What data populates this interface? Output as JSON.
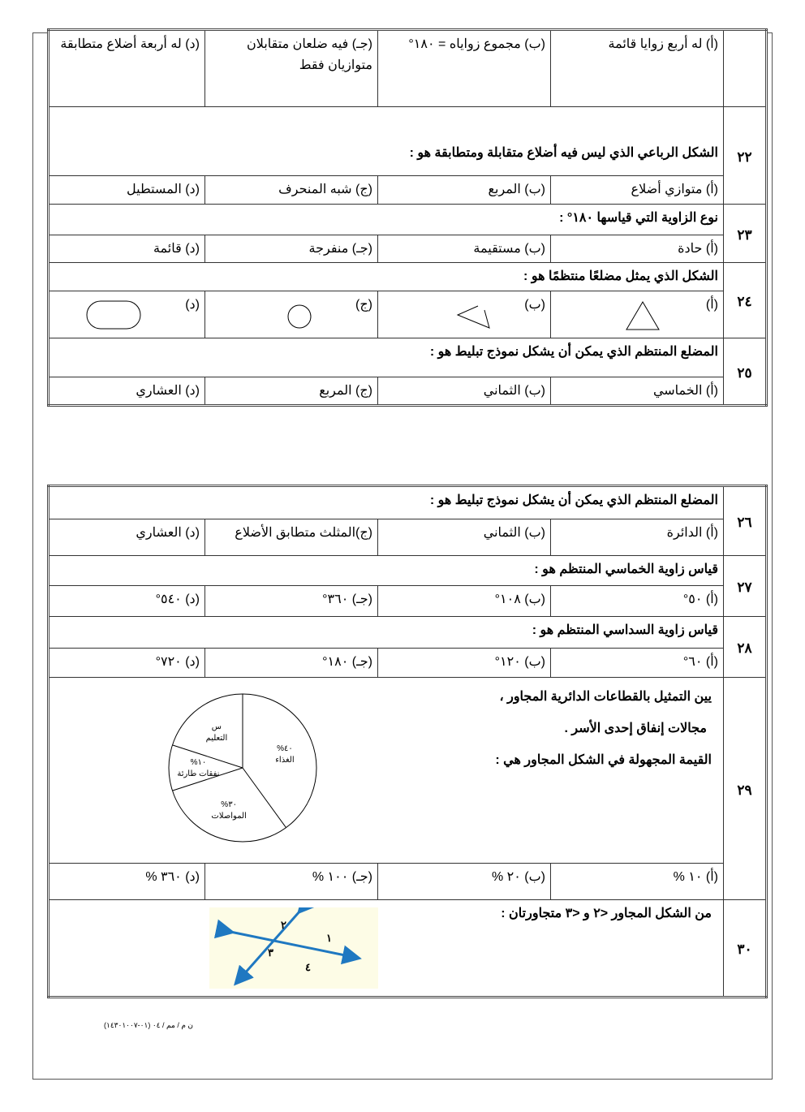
{
  "q21": {
    "options": [
      "(أ) له أربع زوايا قائمة",
      "(ب) مجموع زواياه = ١٨٠°",
      "(جـ) فيه ضلعان متقابلان متوازيان  فقط",
      "(د) له أربعة أضلاع متطابقة"
    ]
  },
  "q22": {
    "number": "٢٢",
    "question": "الشكل الرباعي الذي ليس فيه أضلاع متقابلة ومتطابقة هو :",
    "options": [
      "(أ) متوازي أضلاع",
      "(ب) المربع",
      "(ج) شبه المنحرف",
      "(د) المستطيل"
    ]
  },
  "q23": {
    "number": "٢٣",
    "question": "نوع الزاوية التي قياسها ١٨٠° :",
    "options": [
      "(أ) حادة",
      "(ب) مستقيمة",
      "(جـ) منفرجة",
      "(د) قائمة"
    ]
  },
  "q24": {
    "number": "٢٤",
    "question": "الشكل الذي يمثل مضلعًا منتظمًا هو :",
    "options": [
      "(أ)",
      "(ب)",
      "(ج)",
      "(د)"
    ],
    "shape_icons": [
      "triangle",
      "open-angle",
      "circle",
      "rounded-rectangle"
    ]
  },
  "q25": {
    "number": "٢٥",
    "question": "المضلع المنتظم الذي يمكن أن يشكل نموذج تبليط هو  :",
    "options": [
      "(أ) الخماسي",
      "(ب) الثماني",
      "(ج) المربع",
      "(د) العشاري"
    ]
  },
  "q26": {
    "number": "٢٦",
    "question": "المضلع المنتظم الذي يمكن أن يشكل نموذج تبليط هو  :",
    "options": [
      "(أ) الدائرة",
      "(ب) الثماني",
      "(ج)المثلث متطابق الأضلاع",
      "(د) العشاري"
    ]
  },
  "q27": {
    "number": "٢٧",
    "question": "قياس زاوية الخماسي المنتظم هو :",
    "options": [
      "(أ)  ٥٠°",
      "(ب)  ١٠٨°",
      "(جـ)  ٣٦٠°",
      "(د)  ٥٤٠°"
    ]
  },
  "q28": {
    "number": "٢٨",
    "question": "قياس زاوية السداسي المنتظم هو :",
    "options": [
      "(أ)  ٦٠°",
      "(ب)  ١٢٠°",
      "(جـ)  ١٨٠°",
      "(د)  ٧٢٠°"
    ]
  },
  "q29": {
    "number": "٢٩",
    "question_lines": [
      "يين التمثيل بالقطاعات الدائرية المجاور ،",
      "مجالات إنفاق إحدى الأسر .",
      "القيمة المجهولة في الشكل المجاور هي :"
    ],
    "options": [
      "(أ) ١٠ %",
      "(ب) ٢٠ %",
      "(جـ) ١٠٠ %",
      "(د) ٣٦٠ %"
    ]
  },
  "chart_data": {
    "type": "pie",
    "slices": [
      {
        "label": "الغذاء",
        "value_label": "%٤٠",
        "value": 40
      },
      {
        "label": "المواصلات",
        "value_label": "%٣٠",
        "value": 30
      },
      {
        "label": "نفقات طارئة",
        "value_label": "%١٠",
        "value": 10
      },
      {
        "label": "التعليم",
        "value_label": "س",
        "value": 20
      }
    ]
  },
  "q30": {
    "number": "٣٠",
    "question": "من الشكل المجاور <٢ و <٣ متجاورتان :",
    "angle_labels": [
      "١",
      "٢",
      "٣",
      "٤"
    ],
    "line_color": "#1f78c1"
  },
  "footer": "ن م / مم / ٠٤ (٠١-١٤٣٠١٠٠٧)"
}
